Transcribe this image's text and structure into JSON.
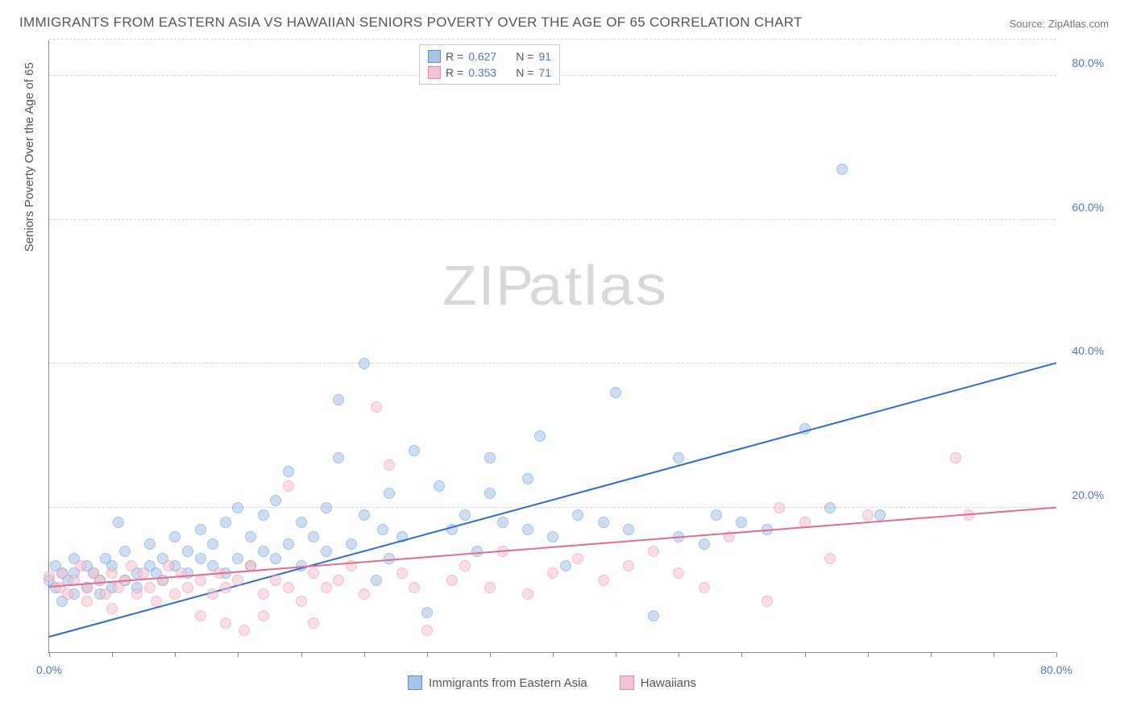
{
  "title": "IMMIGRANTS FROM EASTERN ASIA VS HAWAIIAN SENIORS POVERTY OVER THE AGE OF 65 CORRELATION CHART",
  "source": "Source: ZipAtlas.com",
  "y_axis_label": "Seniors Poverty Over the Age of 65",
  "watermark_a": "ZIP",
  "watermark_b": "atlas",
  "chart": {
    "type": "scatter",
    "xlim": [
      0,
      80
    ],
    "ylim": [
      0,
      85
    ],
    "x_ticks": [
      0,
      5,
      10,
      15,
      20,
      25,
      30,
      35,
      40,
      45,
      50,
      55,
      60,
      65,
      70,
      75,
      80
    ],
    "x_tick_labels": {
      "0": "0.0%",
      "80": "80.0%"
    },
    "y_ticks": [
      20,
      40,
      60,
      80
    ],
    "y_tick_labels": {
      "20": "20.0%",
      "40": "40.0%",
      "60": "60.0%",
      "80": "80.0%"
    },
    "grid_color": "#d5d5d5",
    "background_color": "#ffffff",
    "axis_color": "#888888",
    "tick_label_color": "#4a7ac7",
    "point_radius": 7,
    "point_opacity": 0.55,
    "series": [
      {
        "name": "Immigrants from Eastern Asia",
        "fill_color": "#a7c4e8",
        "stroke_color": "#5a8fd6",
        "line_color": "#2d6bd0",
        "r_label": "R =",
        "r_value": "0.627",
        "n_label": "N =",
        "n_value": "91",
        "trend": {
          "x0": 0,
          "y0": 2,
          "x1": 80,
          "y1": 40
        },
        "points": [
          [
            0,
            10
          ],
          [
            0.5,
            9
          ],
          [
            0.5,
            12
          ],
          [
            1,
            7
          ],
          [
            1,
            11
          ],
          [
            1.5,
            10
          ],
          [
            2,
            8
          ],
          [
            2,
            13
          ],
          [
            2,
            11
          ],
          [
            3,
            9
          ],
          [
            3,
            12
          ],
          [
            3.5,
            11
          ],
          [
            4,
            10
          ],
          [
            4,
            8
          ],
          [
            4.5,
            13
          ],
          [
            5,
            12
          ],
          [
            5,
            9
          ],
          [
            5.5,
            18
          ],
          [
            6,
            10
          ],
          [
            6,
            14
          ],
          [
            7,
            11
          ],
          [
            7,
            9
          ],
          [
            8,
            12
          ],
          [
            8,
            15
          ],
          [
            8.5,
            11
          ],
          [
            9,
            13
          ],
          [
            9,
            10
          ],
          [
            10,
            12
          ],
          [
            10,
            16
          ],
          [
            11,
            11
          ],
          [
            11,
            14
          ],
          [
            12,
            13
          ],
          [
            12,
            17
          ],
          [
            13,
            12
          ],
          [
            13,
            15
          ],
          [
            14,
            11
          ],
          [
            14,
            18
          ],
          [
            15,
            13
          ],
          [
            15,
            20
          ],
          [
            16,
            12
          ],
          [
            16,
            16
          ],
          [
            17,
            14
          ],
          [
            17,
            19
          ],
          [
            18,
            13
          ],
          [
            18,
            21
          ],
          [
            19,
            15
          ],
          [
            19,
            25
          ],
          [
            20,
            12
          ],
          [
            20,
            18
          ],
          [
            21,
            16
          ],
          [
            22,
            14
          ],
          [
            22,
            20
          ],
          [
            23,
            27
          ],
          [
            23,
            35
          ],
          [
            24,
            15
          ],
          [
            25,
            19
          ],
          [
            25,
            40
          ],
          [
            26,
            10
          ],
          [
            26.5,
            17
          ],
          [
            27,
            13
          ],
          [
            27,
            22
          ],
          [
            28,
            16
          ],
          [
            29,
            28
          ],
          [
            30,
            5.5
          ],
          [
            31,
            23
          ],
          [
            32,
            17
          ],
          [
            33,
            19
          ],
          [
            34,
            14
          ],
          [
            35,
            27
          ],
          [
            35,
            22
          ],
          [
            36,
            18
          ],
          [
            38,
            17
          ],
          [
            38,
            24
          ],
          [
            39,
            30
          ],
          [
            40,
            16
          ],
          [
            41,
            12
          ],
          [
            42,
            19
          ],
          [
            44,
            18
          ],
          [
            45,
            36
          ],
          [
            46,
            17
          ],
          [
            48,
            5
          ],
          [
            50,
            16
          ],
          [
            50,
            27
          ],
          [
            52,
            15
          ],
          [
            53,
            19
          ],
          [
            55,
            18
          ],
          [
            57,
            17
          ],
          [
            60,
            31
          ],
          [
            62,
            20
          ],
          [
            63,
            67
          ],
          [
            66,
            19
          ]
        ]
      },
      {
        "name": "Hawaiians",
        "fill_color": "#f4c3cf",
        "stroke_color": "#e88aa3",
        "line_color": "#e26b8f",
        "r_label": "R =",
        "r_value": "0.353",
        "n_label": "N =",
        "n_value": "71",
        "trend": {
          "x0": 0,
          "y0": 9,
          "x1": 80,
          "y1": 20
        },
        "points": [
          [
            0,
            10.5
          ],
          [
            0.8,
            9
          ],
          [
            1,
            11
          ],
          [
            1.5,
            8
          ],
          [
            2,
            10
          ],
          [
            2.5,
            12
          ],
          [
            3,
            9
          ],
          [
            3,
            7
          ],
          [
            3.5,
            11
          ],
          [
            4,
            10
          ],
          [
            4.5,
            8
          ],
          [
            5,
            11
          ],
          [
            5,
            6
          ],
          [
            5.5,
            9
          ],
          [
            6,
            10
          ],
          [
            6.5,
            12
          ],
          [
            7,
            8
          ],
          [
            7.5,
            11
          ],
          [
            8,
            9
          ],
          [
            8.5,
            7
          ],
          [
            9,
            10
          ],
          [
            9.5,
            12
          ],
          [
            10,
            8
          ],
          [
            10.5,
            11
          ],
          [
            11,
            9
          ],
          [
            12,
            10
          ],
          [
            12,
            5
          ],
          [
            13,
            8
          ],
          [
            13.5,
            11
          ],
          [
            14,
            4
          ],
          [
            14,
            9
          ],
          [
            15,
            10
          ],
          [
            15.5,
            3
          ],
          [
            16,
            12
          ],
          [
            17,
            8
          ],
          [
            17,
            5
          ],
          [
            18,
            10
          ],
          [
            19,
            9
          ],
          [
            19,
            23
          ],
          [
            20,
            7
          ],
          [
            21,
            11
          ],
          [
            21,
            4
          ],
          [
            22,
            9
          ],
          [
            23,
            10
          ],
          [
            24,
            12
          ],
          [
            25,
            8
          ],
          [
            26,
            34
          ],
          [
            27,
            26
          ],
          [
            28,
            11
          ],
          [
            29,
            9
          ],
          [
            30,
            3
          ],
          [
            32,
            10
          ],
          [
            33,
            12
          ],
          [
            35,
            9
          ],
          [
            36,
            14
          ],
          [
            38,
            8
          ],
          [
            40,
            11
          ],
          [
            42,
            13
          ],
          [
            44,
            10
          ],
          [
            46,
            12
          ],
          [
            48,
            14
          ],
          [
            50,
            11
          ],
          [
            52,
            9
          ],
          [
            54,
            16
          ],
          [
            57,
            7
          ],
          [
            58,
            20
          ],
          [
            60,
            18
          ],
          [
            62,
            13
          ],
          [
            65,
            19
          ],
          [
            72,
            27
          ],
          [
            73,
            19
          ]
        ]
      }
    ]
  },
  "legend_bottom": [
    {
      "swatch_fill": "#a7c4e8",
      "swatch_stroke": "#5a8fd6",
      "label": "Immigrants from Eastern Asia"
    },
    {
      "swatch_fill": "#f4c3cf",
      "swatch_stroke": "#e88aa3",
      "label": "Hawaiians"
    }
  ]
}
